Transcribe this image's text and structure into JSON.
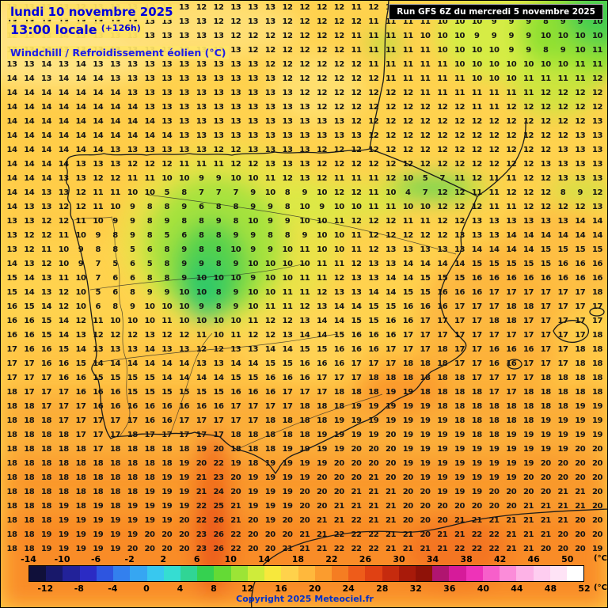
{
  "header": {
    "date_line": "lundi 10 novembre 2025",
    "time_line": "13:00 locale",
    "offset": "(+126h)",
    "variable_label": "Windchill / Refroidissement éolien (°C)",
    "run_info": "Run GFS 6Z du mercredi 5 novembre 2025"
  },
  "footer": {
    "copyright": "Copyright 2025 Meteociel.fr",
    "unit_label": "(°C)"
  },
  "colors": {
    "header_blue": "#0000DC",
    "copyright_blue": "#0030CC",
    "run_box_bg": "#000000",
    "map_base_yellow": "#FFD24E"
  },
  "chart_data": {
    "type": "heatmap",
    "title": "Windchill / Refroidissement éolien (°C)",
    "legend_position": "bottom",
    "grid_rows": [
      "13 13 13 13 12 13 13 13 13 13 13 12 12 13 13 13 12 12 12 12 11 12 12 11 11 11 10 10 10 9 9 9 8 9 9",
      "13 13 13 13 13 13 13 13 13 13 13 13 12 12 13 13 12 12 12 12 12 11 11 11 11 10 10 10 9 9 9 8 9 9 10",
      "12 13 13 14 13 13 13 13 13 13 13 13 13 12 12 12 12 12 12 12 11 11 11 11 10 10 10 9 9 9 9 10 10 10 10",
      "13 13 13 13 13 13 13 13 13 13 13 13 13 13 12 12 12 12 12 12 11 11 11 11 11 10 10 10 10 9 9 8 9 10 11",
      "13 13 14 13 14 13 13 13 13 13 13 13 13 13 13 12 12 12 12 12 12 11 11 11 11 11 10 10 10 10 10 10 10 11 11",
      "14 14 13 14 14 14 13 13 13 13 13 13 13 13 13 13 12 12 12 12 12 12 11 11 11 11 11 10 10 10 11 11 11 11 12",
      "14 14 14 14 14 14 14 13 13 13 13 13 13 13 13 13 13 12 12 12 12 12 12 12 11 11 11 11 11 11 11 12 12 12 12",
      "14 14 14 14 14 14 14 14 13 13 13 13 13 13 13 13 13 13 12 12 12 12 12 12 12 12 12 11 11 12 12 12 12 12 12",
      "14 14 14 14 14 14 14 14 14 13 13 13 13 13 13 13 13 13 13 13 12 12 12 12 12 12 12 12 12 12 12 12 12 12 13",
      "14 14 14 14 14 14 14 14 14 14 13 13 13 13 13 13 13 13 13 13 13 12 12 12 12 12 12 12 12 12 12 12 12 13 13",
      "14 14 14 14 14 14 13 13 13 13 13 13 12 12 13 13 13 13 12 12 12 12 12 12 12 12 12 12 12 12 12 12 13 13 13",
      "14 14 14 14 13 13 13 12 12 12 11 11 11 12 12 13 13 13 12 12 12 12 12 12 12 12 12 12 12 12 12 13 13 13 13",
      "14 14 14 13 13 12 12 11 11 10 10 9 9 10 10 11 12 13 12 11 11 11 12 10 5 7 11 12 11 11 12 12 13 13 13",
      "14 14 13 13 12 11 11 10 10 5 8 7 7 7 9 10 8 9 10 12 12 11 10 4 7 12 12 11 11 12 12 12 8 9 12",
      "14 13 13 12 12 11 10 9 8 8 9 6 8 8 9 9 8 10 9 10 10 11 11 10 10 12 12 12 11 11 12 12 12 12 13",
      "13 13 12 12 11 10 9 9 8 9 8 8 9 8 10 9 9 10 10 11 12 12 12 11 11 12 12 13 13 13 13 13 13 14 14",
      "13 12 12 11 10 9 8 9 8 5 6 8 8 9 9 8 8 9 10 10 11 12 12 12 12 12 13 13 13 14 14 14 14 14 14",
      "13 12 11 10 9 8 8 5 6 8 9 8 8 10 9 9 10 11 10 10 11 12 13 13 13 13 13 14 14 14 14 15 15 15 15",
      "14 13 12 10 9 7 5 6 5 8 9 9 8 9 10 10 10 10 11 11 12 13 13 14 14 14 14 15 15 15 15 15 16 16 16",
      "15 14 13 11 10 7 6 6 8 8 9 10 10 10 9 10 10 11 11 12 13 13 14 14 15 15 15 16 16 16 16 16 16 16 16",
      "15 14 13 12 10 5 6 8 9 9 10 10 8 9 10 10 11 11 12 13 13 14 14 15 15 16 16 16 17 17 17 17 17 17 18",
      "16 15 14 12 10 6 8 9 10 10 10 9 8 9 10 11 11 12 13 14 14 15 15 16 16 16 17 17 17 18 18 17 17 17 17",
      "16 16 15 14 12 11 10 10 10 11 10 10 10 10 11 12 12 13 14 14 15 15 16 16 17 17 17 17 18 18 17 17 17 17 17",
      "16 16 15 14 13 12 12 12 13 12 12 11 10 11 12 12 13 14 14 15 16 16 16 17 17 17 17 17 17 17 17 17 17 17 18",
      "17 16 16 15 14 13 13 13 14 13 13 12 12 13 13 14 14 15 15 16 16 16 17 17 17 18 17 17 16 16 16 17 17 18 18",
      "17 17 16 16 15 14 14 14 14 14 14 13 13 14 14 15 15 16 16 16 17 17 17 18 18 18 17 17 16 16 17 17 17 18 18",
      "17 17 17 16 16 15 15 15 15 14 14 14 14 15 15 16 16 16 17 17 17 18 18 18 18 18 18 17 17 17 17 18 18 18 18",
      "18 17 17 17 16 16 16 15 15 15 15 15 15 16 16 16 17 17 17 18 18 18 19 19 18 18 18 18 17 17 18 18 18 18 18",
      "18 18 17 17 17 16 16 16 16 16 16 16 16 17 17 17 17 18 18 18 19 19 19 19 19 18 18 18 18 18 18 18 18 19 19",
      "18 18 18 17 17 17 17 17 16 16 17 17 17 17 17 18 18 18 18 19 19 19 19 19 19 19 18 18 18 18 18 19 19 19 19",
      "18 18 18 18 17 17 17 18 17 17 17 17 17 18 18 18 18 18 19 19 19 19 20 19 19 19 19 18 18 19 19 19 19 19 19",
      "18 18 18 18 18 17 18 18 18 18 18 19 20 18 18 18 19 19 19 19 20 20 20 19 19 19 19 19 19 19 19 19 19 20 20",
      "18 18 18 18 18 18 18 18 18 18 19 20 22 19 18 19 19 19 19 20 20 20 20 19 19 19 19 19 19 19 19 20 20 20 20",
      "18 18 18 18 18 18 18 18 18 19 19 21 23 20 19 19 19 19 20 20 20 21 20 20 19 19 19 19 19 19 20 20 20 20 20",
      "18 18 18 18 18 18 18 18 19 19 19 21 24 20 19 19 19 20 20 20 21 21 21 20 20 19 19 19 20 20 20 20 21 21 20",
      "18 18 18 19 18 19 18 19 19 19 19 22 25 21 19 19 19 20 20 21 21 21 21 20 20 20 20 20 20 20 21 21 21 21 20",
      "18 18 18 19 19 19 19 19 19 19 20 22 26 21 20 19 20 20 21 21 22 21 21 20 20 20 21 21 21 21 21 21 21 20 20",
      "18 18 19 19 19 19 19 19 20 20 20 23 26 22 20 20 20 21 21 22 22 22 21 21 20 21 21 22 22 21 21 21 20 20 20",
      "18 18 19 19 19 19 19 20 20 20 20 23 26 22 20 20 21 21 21 22 22 22 21 21 21 21 22 22 22 21 21 20 20 20 19"
    ],
    "scale": {
      "min": -14,
      "max": 52,
      "step": 2,
      "top_labels": [
        -14,
        -10,
        -6,
        -2,
        2,
        6,
        10,
        14,
        18,
        22,
        26,
        30,
        34,
        38,
        42,
        46,
        50
      ],
      "bottom_labels": [
        -12,
        -8,
        -4,
        0,
        4,
        8,
        12,
        16,
        20,
        24,
        28,
        32,
        36,
        40,
        44,
        48,
        52
      ],
      "segment_colors": [
        "#10103a",
        "#18186a",
        "#222299",
        "#2b2bc4",
        "#2e55e0",
        "#3380ee",
        "#36a6f2",
        "#38c8ef",
        "#35ddd2",
        "#30d595",
        "#35d150",
        "#64da35",
        "#9ce436",
        "#cfec3a",
        "#f7e83c",
        "#ffd24b",
        "#ffb83c",
        "#fb9c2e",
        "#f57d22",
        "#ee5c1a",
        "#e04113",
        "#c62b0e",
        "#a81a0a",
        "#8f1208",
        "#b01570",
        "#d61b9a",
        "#ee33b8",
        "#f75fca",
        "#fb8cd9",
        "#fdb2e6",
        "#fecdf0",
        "#fee3f6",
        "#ffffff"
      ]
    }
  }
}
